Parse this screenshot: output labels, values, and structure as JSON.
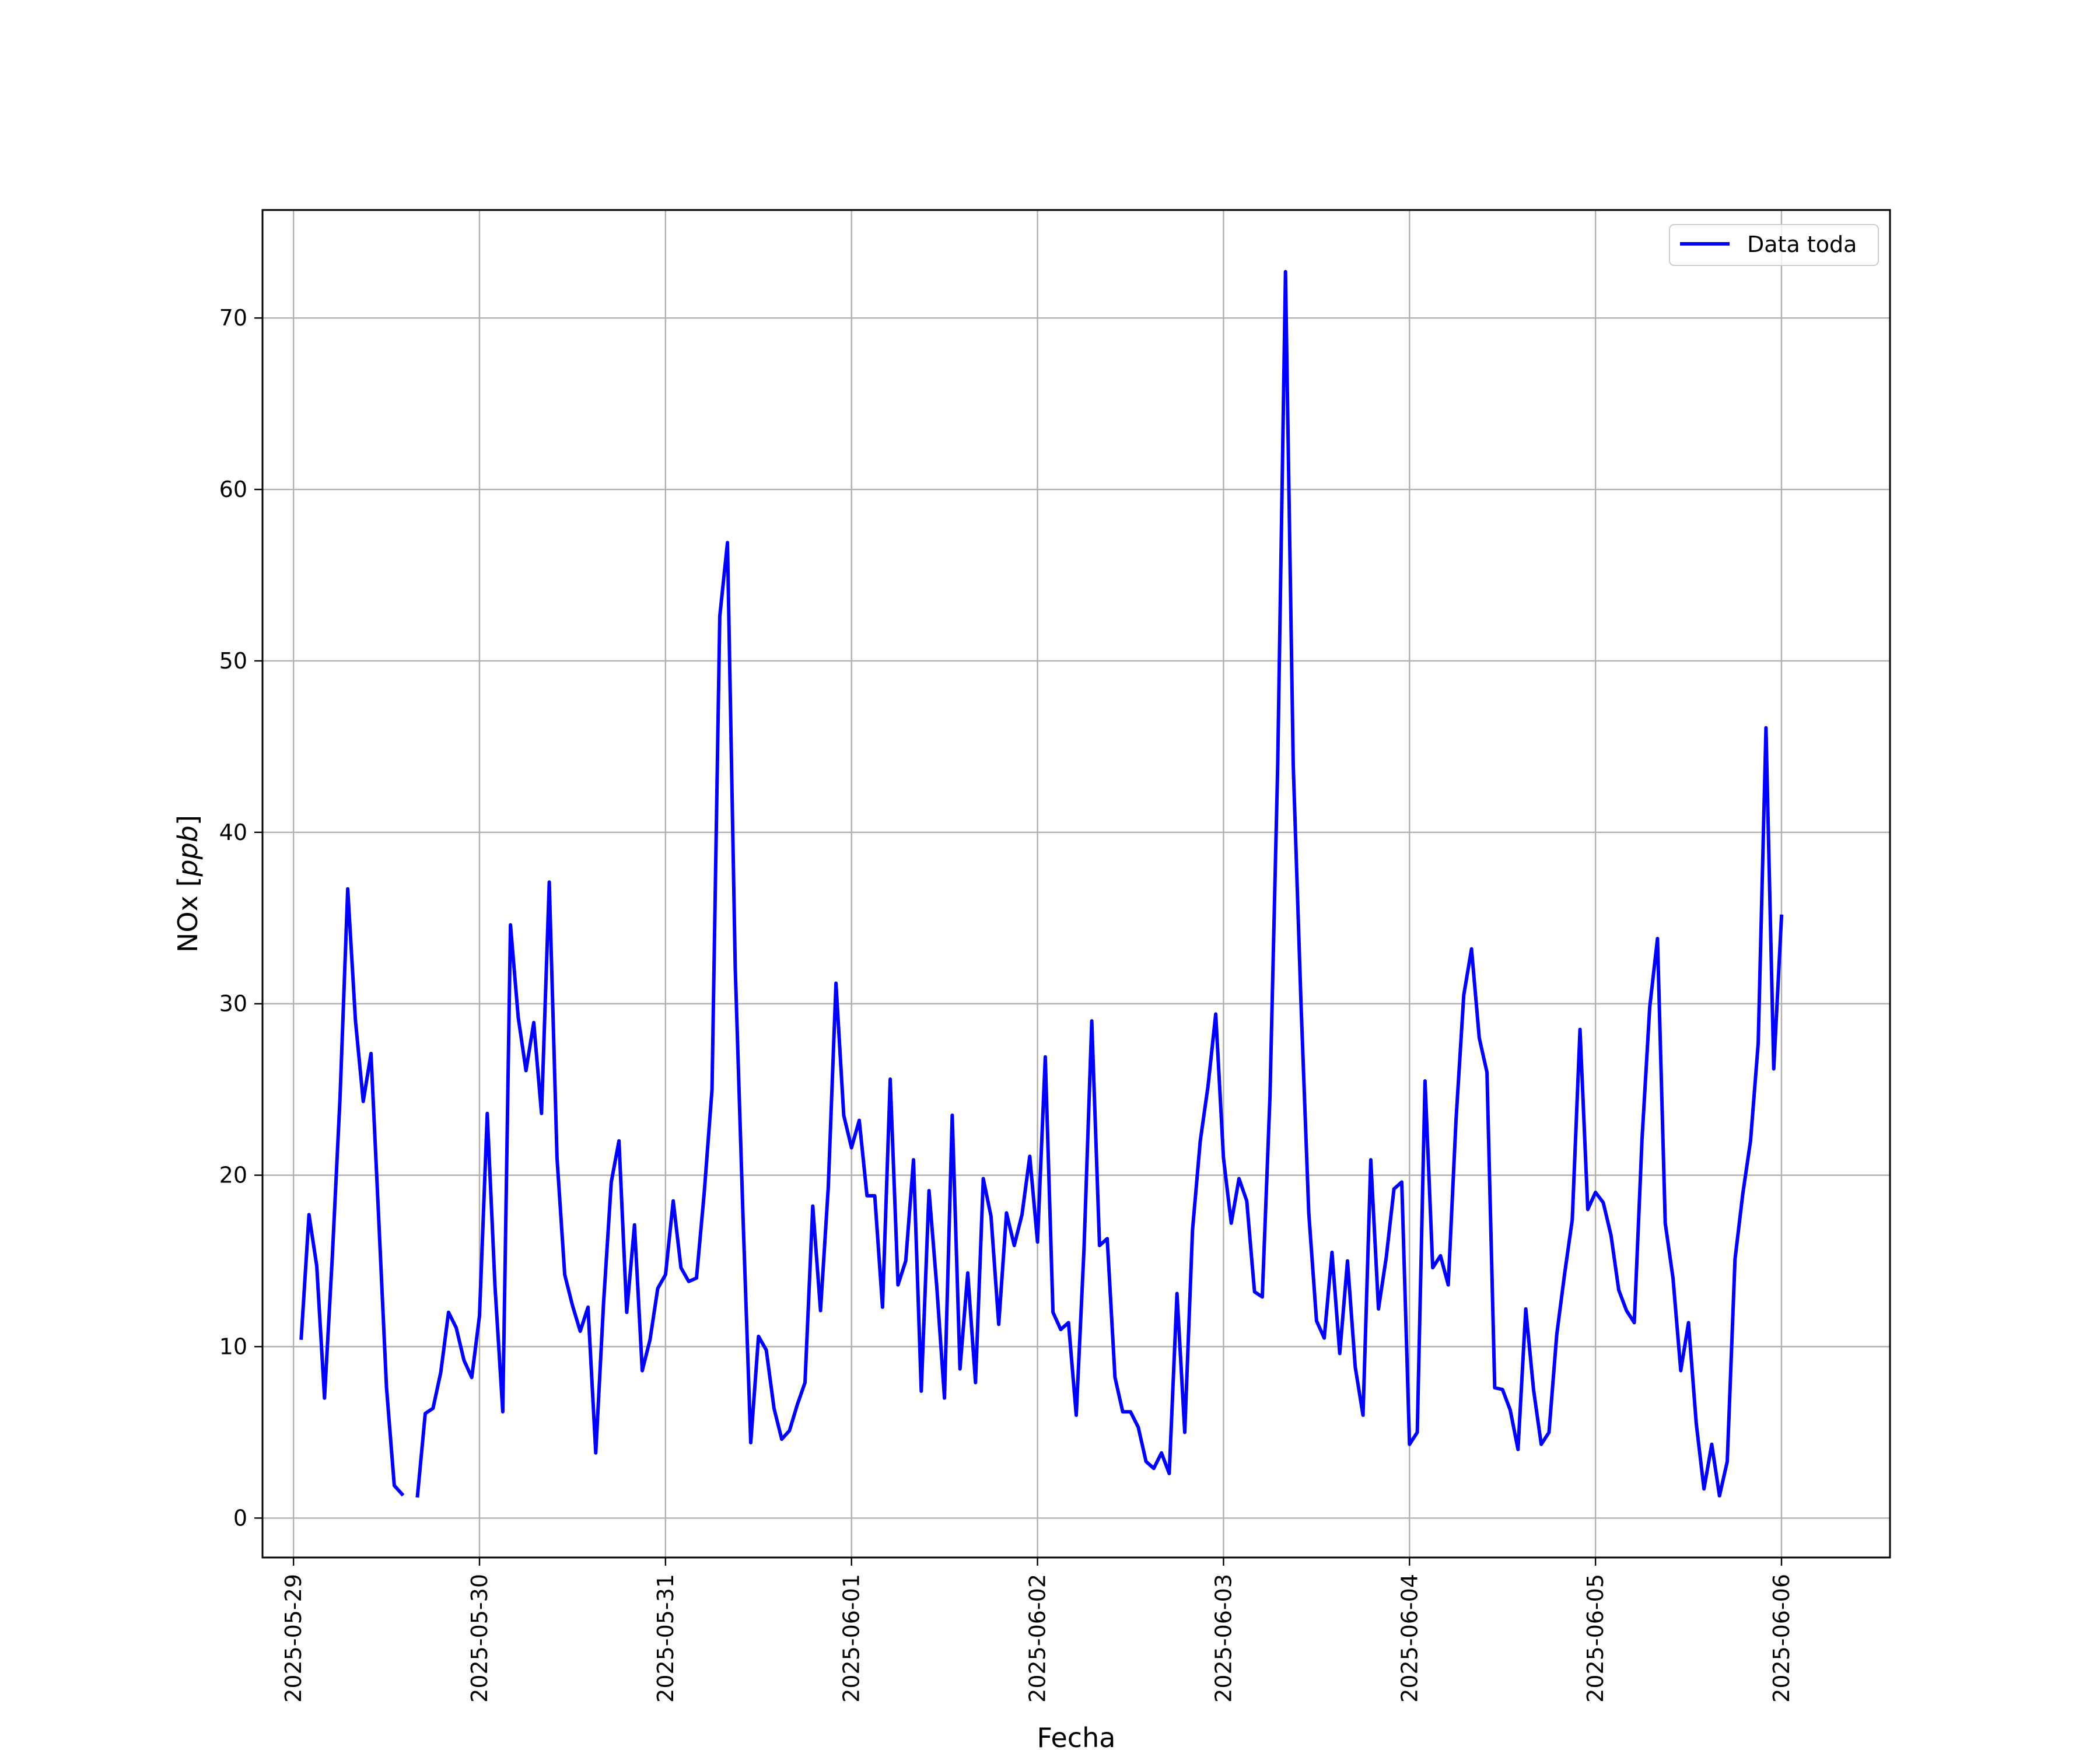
{
  "chart_data": {
    "type": "line",
    "xlabel": "Fecha",
    "ylabel_plain": "NOx [",
    "ylabel_italic": "ppb",
    "ylabel_close": "]",
    "xlim": [
      "2025-05-28T20:00",
      "2025-06-06T14:00"
    ],
    "ylim": [
      -2.3,
      76.3
    ],
    "grid": true,
    "legend_position": "top-right",
    "x_ticks": [
      "2025-05-29",
      "2025-05-30",
      "2025-05-31",
      "2025-06-01",
      "2025-06-02",
      "2025-06-03",
      "2025-06-04",
      "2025-06-05",
      "2025-06-06"
    ],
    "y_ticks": [
      0,
      10,
      20,
      30,
      40,
      50,
      60,
      70
    ],
    "series": [
      {
        "name": "Data toda",
        "color": "#0000ff",
        "start": "2025-05-29T01:00",
        "step_hours": 1,
        "values": [
          10.5,
          17.7,
          14.7,
          7.0,
          15.2,
          24.5,
          36.7,
          29.0,
          24.3,
          27.1,
          17.4,
          7.6,
          1.9,
          1.4,
          null,
          1.3,
          6.1,
          6.4,
          8.5,
          12.0,
          11.1,
          9.2,
          8.2,
          11.8,
          23.6,
          13.5,
          6.2,
          34.6,
          29.2,
          26.1,
          28.9,
          23.6,
          37.1,
          21.0,
          14.2,
          12.4,
          10.9,
          12.3,
          3.8,
          12.5,
          19.6,
          22.0,
          12.0,
          17.1,
          8.6,
          10.4,
          13.4,
          14.2,
          18.5,
          14.6,
          13.8,
          14.0,
          19.0,
          25.0,
          52.6,
          56.9,
          32.1,
          17.6,
          4.4,
          10.6,
          9.8,
          6.4,
          4.6,
          5.1,
          6.6,
          7.9,
          18.2,
          12.1,
          19.3,
          31.2,
          23.5,
          21.6,
          23.2,
          18.8,
          18.8,
          12.3,
          25.6,
          13.6,
          15.0,
          20.9,
          7.4,
          19.1,
          13.5,
          7.0,
          23.5,
          8.7,
          14.3,
          7.9,
          19.8,
          17.6,
          11.3,
          17.8,
          15.9,
          17.7,
          21.1,
          16.1,
          26.9,
          12.0,
          11.0,
          11.4,
          6.0,
          15.7,
          29.0,
          15.9,
          16.3,
          8.2,
          6.2,
          6.2,
          5.3,
          3.3,
          2.9,
          3.8,
          2.6,
          13.1,
          5.0,
          16.8,
          22.0,
          25.2,
          29.4,
          21.0,
          17.2,
          19.8,
          18.5,
          13.2,
          12.9,
          24.6,
          44.0,
          72.7,
          43.9,
          30.0,
          17.8,
          11.5,
          10.5,
          15.5,
          9.6,
          15.0,
          8.8,
          6.0,
          20.9,
          12.2,
          15.2,
          19.2,
          19.6,
          4.3,
          5.0,
          25.5,
          14.6,
          15.3,
          13.6,
          23.2,
          30.5,
          33.2,
          28.0,
          26.0,
          7.6,
          7.5,
          6.3,
          4.0,
          12.2,
          7.5,
          4.3,
          5.0,
          10.7,
          14.2,
          17.4,
          28.5,
          18.0,
          19.0,
          18.4,
          16.5,
          13.3,
          12.1,
          11.4,
          22.1,
          29.8,
          33.8,
          17.2,
          14.0,
          8.6,
          11.4,
          5.5,
          1.7,
          4.3,
          1.3,
          3.3,
          15.1,
          18.9,
          22.0,
          27.7,
          46.1,
          26.2,
          35.1
        ]
      }
    ]
  }
}
